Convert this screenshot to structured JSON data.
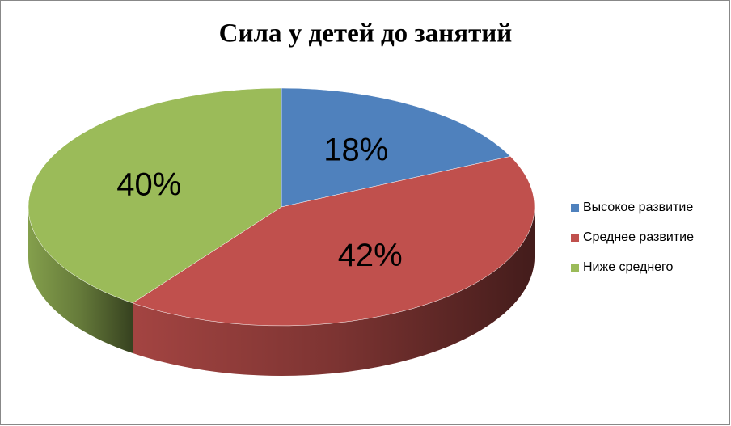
{
  "chart_data": {
    "type": "pie",
    "title": "Сила у детей до занятий",
    "categories": [
      "Высокое развитие",
      "Среднее развитие",
      "Ниже среднего"
    ],
    "values": [
      18,
      42,
      40
    ],
    "value_labels": [
      "18%",
      "42%",
      "40%"
    ],
    "colors": [
      "#4f81bd",
      "#c0504d",
      "#9bbb59"
    ],
    "legend": "right"
  }
}
